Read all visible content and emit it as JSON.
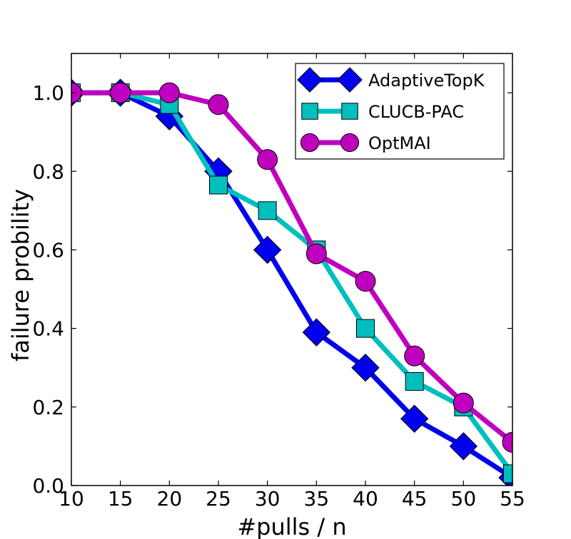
{
  "chart_data": {
    "type": "line",
    "title": "",
    "xlabel": "#pulls / n",
    "ylabel": "failure probility",
    "x": [
      10,
      15,
      20,
      25,
      30,
      35,
      40,
      45,
      50,
      55
    ],
    "xlim": [
      10,
      55
    ],
    "ylim": [
      0.0,
      1.1
    ],
    "xticks": [
      "10",
      "15",
      "20",
      "25",
      "30",
      "35",
      "40",
      "45",
      "50",
      "55"
    ],
    "yticks": [
      "0.0",
      "0.2",
      "0.4",
      "0.6",
      "0.8",
      "1.0"
    ],
    "grid": false,
    "legend_position": "top-right",
    "series": [
      {
        "name": "AdaptiveTopK",
        "color": "#0000ee",
        "marker": "diamond",
        "values": [
          1.0,
          1.0,
          0.94,
          0.8,
          0.6,
          0.39,
          0.3,
          0.17,
          0.1,
          0.02
        ]
      },
      {
        "name": "CLUCB-PAC",
        "color": "#00bfbf",
        "marker": "square",
        "values": [
          1.0,
          1.0,
          0.97,
          0.765,
          0.7,
          0.6,
          0.4,
          0.265,
          0.2,
          0.03
        ]
      },
      {
        "name": "OptMAI",
        "color": "#bf00bf",
        "marker": "circle",
        "values": [
          1.0,
          1.0,
          1.0,
          0.97,
          0.83,
          0.59,
          0.52,
          0.33,
          0.21,
          0.11
        ]
      }
    ]
  }
}
